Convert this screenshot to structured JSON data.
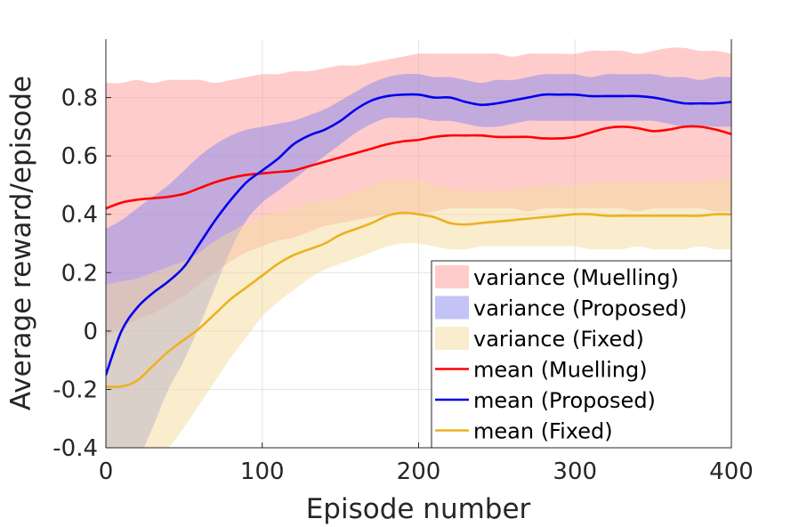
{
  "chart_data": {
    "type": "line",
    "xlabel": "Episode number",
    "ylabel": "Average reward/episode",
    "xlim": [
      0,
      400
    ],
    "ylim": [
      -0.4,
      1.0
    ],
    "x_ticks": [
      0,
      100,
      200,
      300,
      400
    ],
    "x_tick_labels": [
      "0",
      "100",
      "200",
      "300",
      "400"
    ],
    "y_ticks": [
      -0.4,
      -0.2,
      0,
      0.2,
      0.4,
      0.6,
      0.8
    ],
    "y_tick_labels": [
      "-0.4",
      "-0.2",
      "0",
      "0.2",
      "0.4",
      "0.6",
      "0.8"
    ],
    "grid": true,
    "legend_position": "bottom-right",
    "x": [
      0,
      10,
      20,
      30,
      40,
      50,
      60,
      70,
      80,
      90,
      100,
      110,
      120,
      130,
      140,
      150,
      160,
      170,
      180,
      190,
      200,
      210,
      220,
      230,
      240,
      250,
      260,
      270,
      280,
      290,
      300,
      310,
      320,
      330,
      340,
      350,
      360,
      370,
      380,
      390,
      400
    ],
    "series": [
      {
        "name": "Muelling",
        "color": "#ff0000",
        "band_color": "#ff9999",
        "mean": [
          0.42,
          0.44,
          0.45,
          0.455,
          0.46,
          0.47,
          0.49,
          0.51,
          0.525,
          0.535,
          0.54,
          0.545,
          0.55,
          0.565,
          0.58,
          0.595,
          0.61,
          0.625,
          0.64,
          0.65,
          0.655,
          0.665,
          0.67,
          0.67,
          0.67,
          0.665,
          0.665,
          0.665,
          0.66,
          0.66,
          0.665,
          0.68,
          0.695,
          0.7,
          0.695,
          0.685,
          0.69,
          0.7,
          0.7,
          0.69,
          0.675
        ],
        "upper": [
          0.85,
          0.85,
          0.86,
          0.85,
          0.86,
          0.86,
          0.86,
          0.85,
          0.86,
          0.87,
          0.88,
          0.88,
          0.89,
          0.89,
          0.9,
          0.91,
          0.91,
          0.92,
          0.93,
          0.94,
          0.95,
          0.95,
          0.95,
          0.95,
          0.95,
          0.95,
          0.94,
          0.95,
          0.95,
          0.95,
          0.95,
          0.96,
          0.96,
          0.96,
          0.95,
          0.96,
          0.97,
          0.97,
          0.96,
          0.96,
          0.95
        ],
        "lower": [
          -0.02,
          0.01,
          0.04,
          0.06,
          0.09,
          0.12,
          0.16,
          0.2,
          0.24,
          0.27,
          0.29,
          0.31,
          0.32,
          0.34,
          0.36,
          0.37,
          0.38,
          0.39,
          0.4,
          0.4,
          0.4,
          0.41,
          0.42,
          0.42,
          0.42,
          0.42,
          0.42,
          0.41,
          0.42,
          0.42,
          0.42,
          0.42,
          0.42,
          0.42,
          0.41,
          0.42,
          0.42,
          0.42,
          0.42,
          0.41,
          0.41
        ]
      },
      {
        "name": "Proposed",
        "color": "#0000ee",
        "band_color": "#8888ee",
        "mean": [
          -0.15,
          0.0,
          0.08,
          0.13,
          0.17,
          0.22,
          0.3,
          0.38,
          0.45,
          0.51,
          0.55,
          0.59,
          0.64,
          0.67,
          0.69,
          0.72,
          0.76,
          0.79,
          0.805,
          0.81,
          0.81,
          0.8,
          0.8,
          0.785,
          0.775,
          0.78,
          0.79,
          0.8,
          0.81,
          0.81,
          0.81,
          0.805,
          0.805,
          0.805,
          0.805,
          0.8,
          0.79,
          0.78,
          0.78,
          0.78,
          0.785
        ],
        "upper": [
          0.35,
          0.38,
          0.42,
          0.46,
          0.5,
          0.55,
          0.6,
          0.64,
          0.67,
          0.69,
          0.7,
          0.71,
          0.72,
          0.74,
          0.76,
          0.79,
          0.82,
          0.85,
          0.87,
          0.88,
          0.88,
          0.87,
          0.87,
          0.86,
          0.85,
          0.86,
          0.86,
          0.87,
          0.88,
          0.88,
          0.88,
          0.87,
          0.88,
          0.88,
          0.88,
          0.88,
          0.87,
          0.87,
          0.86,
          0.87,
          0.87
        ],
        "lower": [
          -0.62,
          -0.55,
          -0.45,
          -0.33,
          -0.2,
          -0.1,
          0.02,
          0.15,
          0.28,
          0.38,
          0.44,
          0.48,
          0.52,
          0.56,
          0.6,
          0.64,
          0.68,
          0.71,
          0.73,
          0.73,
          0.73,
          0.72,
          0.72,
          0.71,
          0.7,
          0.7,
          0.71,
          0.72,
          0.72,
          0.72,
          0.72,
          0.72,
          0.72,
          0.72,
          0.72,
          0.72,
          0.71,
          0.7,
          0.7,
          0.7,
          0.7
        ]
      },
      {
        "name": "Fixed",
        "color": "#edb120",
        "band_color": "#f3dc9e",
        "mean": [
          -0.19,
          -0.19,
          -0.17,
          -0.12,
          -0.07,
          -0.03,
          0.01,
          0.06,
          0.11,
          0.15,
          0.19,
          0.23,
          0.26,
          0.28,
          0.3,
          0.33,
          0.35,
          0.37,
          0.395,
          0.405,
          0.4,
          0.39,
          0.37,
          0.365,
          0.37,
          0.375,
          0.38,
          0.385,
          0.39,
          0.395,
          0.4,
          0.4,
          0.395,
          0.395,
          0.395,
          0.395,
          0.395,
          0.395,
          0.395,
          0.4,
          0.4
        ],
        "upper": [
          0.16,
          0.17,
          0.18,
          0.2,
          0.22,
          0.24,
          0.27,
          0.31,
          0.34,
          0.37,
          0.39,
          0.41,
          0.42,
          0.44,
          0.45,
          0.46,
          0.48,
          0.5,
          0.52,
          0.52,
          0.52,
          0.5,
          0.49,
          0.48,
          0.48,
          0.48,
          0.49,
          0.49,
          0.5,
          0.5,
          0.5,
          0.51,
          0.51,
          0.51,
          0.51,
          0.51,
          0.51,
          0.51,
          0.51,
          0.52,
          0.52
        ],
        "lower": [
          -0.55,
          -0.52,
          -0.48,
          -0.44,
          -0.4,
          -0.33,
          -0.25,
          -0.17,
          -0.09,
          -0.02,
          0.05,
          0.1,
          0.14,
          0.18,
          0.21,
          0.23,
          0.25,
          0.27,
          0.29,
          0.3,
          0.3,
          0.29,
          0.28,
          0.28,
          0.29,
          0.29,
          0.29,
          0.29,
          0.29,
          0.29,
          0.29,
          0.28,
          0.28,
          0.28,
          0.29,
          0.28,
          0.28,
          0.28,
          0.29,
          0.28,
          0.28
        ]
      }
    ],
    "legend": [
      {
        "label": "variance (Muelling)",
        "kind": "band",
        "series": 0
      },
      {
        "label": "variance (Proposed)",
        "kind": "band",
        "series": 1
      },
      {
        "label": "variance (Fixed)",
        "kind": "band",
        "series": 2
      },
      {
        "label": "mean (Muelling)",
        "kind": "line",
        "series": 0
      },
      {
        "label": "mean (Proposed)",
        "kind": "line",
        "series": 1
      },
      {
        "label": "mean (Fixed)",
        "kind": "line",
        "series": 2
      }
    ]
  }
}
